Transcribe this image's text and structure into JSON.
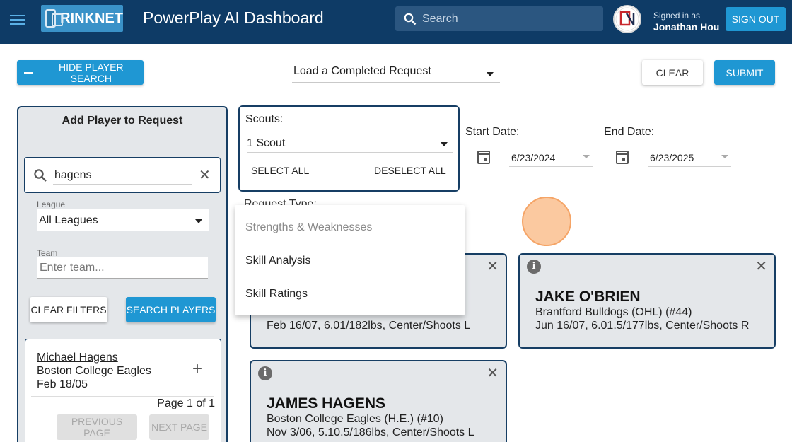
{
  "header": {
    "logo_text": "RINKNET",
    "app_title": "PowerPlay AI Dashboard",
    "search_placeholder": "Search",
    "signed_in_label": "Signed in as",
    "user_name": "Jonathan Hou",
    "sign_out_label": "SIGN OUT",
    "colors": {
      "bar": "#0e3b66",
      "accent": "#1f97d3"
    }
  },
  "actions": {
    "hide_search_label": "HIDE PLAYER SEARCH",
    "load_request_label": "Load a Completed Request",
    "clear_label": "CLEAR",
    "submit_label": "SUBMIT"
  },
  "player_search": {
    "title": "Add Player to Request",
    "search_value": "hagens",
    "league_label": "League",
    "league_value": "All Leagues",
    "team_label": "Team",
    "team_placeholder": "Enter team...",
    "clear_filters_label": "CLEAR FILTERS",
    "search_players_label": "SEARCH PLAYERS",
    "results": [
      {
        "name": "Michael Hagens",
        "team": "Boston College Eagles",
        "dob": "Feb 18/05"
      }
    ],
    "page_info": "Page 1 of 1",
    "prev_label": "PREVIOUS PAGE",
    "next_label": "NEXT PAGE"
  },
  "request": {
    "scouts_label": "Scouts:",
    "scouts_value": "1 Scout",
    "select_all_label": "SELECT ALL",
    "deselect_all_label": "DESELECT ALL",
    "start_date_label": "Start Date:",
    "start_date_value": "6/23/2024",
    "end_date_label": "End Date:",
    "end_date_value": "6/23/2025",
    "request_type_label": "Request Type:",
    "request_type_options": [
      {
        "label": "Strengths & Weaknesses",
        "disabled": true
      },
      {
        "label": "Skill Analysis",
        "disabled": false
      },
      {
        "label": "Skill Ratings",
        "disabled": false
      }
    ]
  },
  "players": [
    {
      "name": "",
      "team": "",
      "details": "Feb 16/07, 6.01/182lbs, Center/Shoots L"
    },
    {
      "name": "JAKE O'BRIEN",
      "team": "Brantford Bulldogs (OHL) (#44)",
      "details": "Jun 16/07, 6.01.5/177lbs, Center/Shoots R"
    },
    {
      "name": "JAMES HAGENS",
      "team": "Boston College Eagles (H.E.) (#10)",
      "details": "Nov 3/06, 5.10.5/186lbs, Center/Shoots L"
    }
  ],
  "icons": {
    "menu": "menu-icon",
    "search": "search-icon",
    "clear": "close-icon",
    "add": "plus-icon",
    "calendar": "calendar-icon",
    "info": "info-icon",
    "remove": "close-icon"
  }
}
